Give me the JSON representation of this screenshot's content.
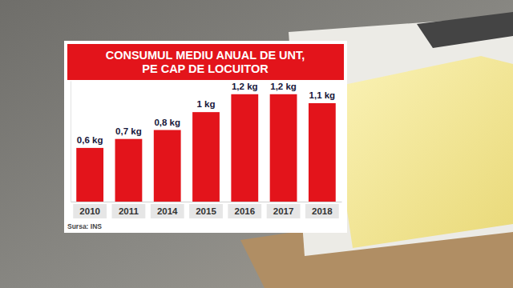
{
  "chart_data": {
    "type": "bar",
    "title": "CONSUMUL MEDIU ANUAL DE UNT, PE CAP DE LOCUITOR",
    "source": "Sursa: INS",
    "categories": [
      "2010",
      "2011",
      "2014",
      "2015",
      "2016",
      "2017",
      "2018"
    ],
    "values": [
      0.6,
      0.7,
      0.8,
      1,
      1.2,
      1.2,
      1.1
    ],
    "value_labels": [
      "0,6 kg",
      "0,7 kg",
      "0,8 kg",
      "1 kg",
      "1,2 kg",
      "1,2 kg",
      "1,1 kg"
    ],
    "data_labels": true,
    "color": "#e3141b",
    "ylim": [
      0,
      1.35
    ],
    "tick_labels": "x"
  }
}
